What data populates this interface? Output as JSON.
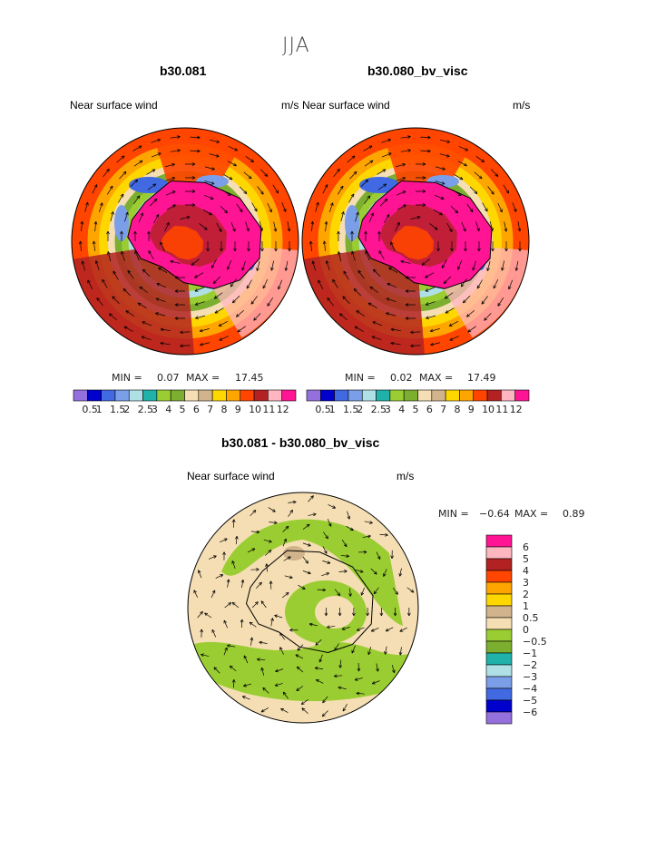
{
  "page": {
    "season": "JJA",
    "panel_a": {
      "title": "b30.081",
      "left_label": "Near surface wind",
      "units": "m/s",
      "min_label": "MIN =",
      "min": "0.07",
      "max_label": "MAX =",
      "max": "17.45"
    },
    "panel_b": {
      "title": "b30.080_bv_visc",
      "left_label": "Near surface wind",
      "units": "m/s",
      "min_label": "MIN =",
      "min": "0.02",
      "max_label": "MAX =",
      "max": "17.49"
    },
    "panel_c": {
      "title": "b30.081 - b30.080_bv_visc",
      "left_label": "Near surface wind",
      "units": "m/s",
      "min_label": "MIN =",
      "min": "−0.64",
      "max_label": "MAX =",
      "max": "0.89"
    }
  },
  "colors": {
    "wind_levels": [
      "#9370db",
      "#0000cd",
      "#4169e1",
      "#7b9ee8",
      "#afe0e6",
      "#20b2aa",
      "#9acd32",
      "#7cae30",
      "#f5deb3",
      "#d2b48c",
      "#ffd700",
      "#ffa500",
      "#ff4500",
      "#b22222",
      "#ffb6c1",
      "#ff1493"
    ],
    "diff_levels": [
      "#9370db",
      "#0000cd",
      "#4169e1",
      "#7b9ee8",
      "#afe0e6",
      "#20b2aa",
      "#7cae30",
      "#9acd32",
      "#f5deb3",
      "#d2b48c",
      "#ffd700",
      "#ffa500",
      "#ff4500",
      "#b22222",
      "#ffb6c1",
      "#ff1493"
    ]
  },
  "chart_data": [
    {
      "type": "heatmap",
      "title": "b30.081",
      "subtitle_left": "Near surface wind",
      "subtitle_right": "m/s",
      "projection": "south polar stereographic",
      "overlay": "wind vectors",
      "min": 0.07,
      "max": 17.45,
      "colorbar_ticks": [
        "0.5",
        "1",
        "1.5",
        "2",
        "2.5",
        "3",
        "4",
        "5",
        "6",
        "7",
        "8",
        "9",
        "10",
        "11",
        "12"
      ]
    },
    {
      "type": "heatmap",
      "title": "b30.080_bv_visc",
      "subtitle_left": "Near surface wind",
      "subtitle_right": "m/s",
      "projection": "south polar stereographic",
      "overlay": "wind vectors",
      "min": 0.02,
      "max": 17.49,
      "colorbar_ticks": [
        "0.5",
        "1",
        "1.5",
        "2",
        "2.5",
        "3",
        "4",
        "5",
        "6",
        "7",
        "8",
        "9",
        "10",
        "11",
        "12"
      ]
    },
    {
      "type": "heatmap",
      "title": "b30.081 - b30.080_bv_visc",
      "subtitle_left": "Near surface wind",
      "subtitle_right": "m/s",
      "projection": "south polar stereographic",
      "overlay": "wind vectors",
      "min": -0.64,
      "max": 0.89,
      "colorbar_ticks": [
        "6",
        "5",
        "4",
        "3",
        "2",
        "1",
        "0.5",
        "0",
        "−0.5",
        "−1",
        "−2",
        "−3",
        "−4",
        "−5",
        "−6"
      ]
    }
  ]
}
